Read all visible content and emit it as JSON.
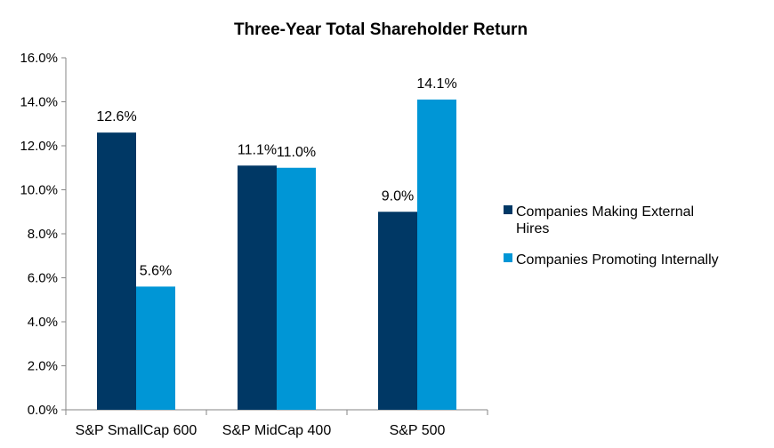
{
  "chart_data": {
    "type": "bar",
    "title": "Three-Year Total Shareholder Return",
    "xlabel": "",
    "ylabel": "",
    "categories": [
      "S&P SmallCap 600",
      "S&P MidCap 400",
      "S&P 500"
    ],
    "series": [
      {
        "name": "Companies Making External Hires",
        "color": "#003865",
        "values": [
          12.6,
          11.1,
          9.0
        ],
        "labels": [
          "12.6%",
          "11.1%",
          "9.0%"
        ]
      },
      {
        "name": "Companies Promoting Internally",
        "color": "#0096D6",
        "values": [
          5.6,
          11.0,
          14.1
        ],
        "labels": [
          "5.6%",
          "11.0%",
          "14.1%"
        ]
      }
    ],
    "ylim": [
      0,
      16
    ],
    "yticks": [
      0,
      2,
      4,
      6,
      8,
      10,
      12,
      14,
      16
    ],
    "ytick_labels": [
      "0.0%",
      "2.0%",
      "4.0%",
      "6.0%",
      "8.0%",
      "10.0%",
      "12.0%",
      "14.0%",
      "16.0%"
    ],
    "grid": false,
    "legend_position": "right"
  }
}
